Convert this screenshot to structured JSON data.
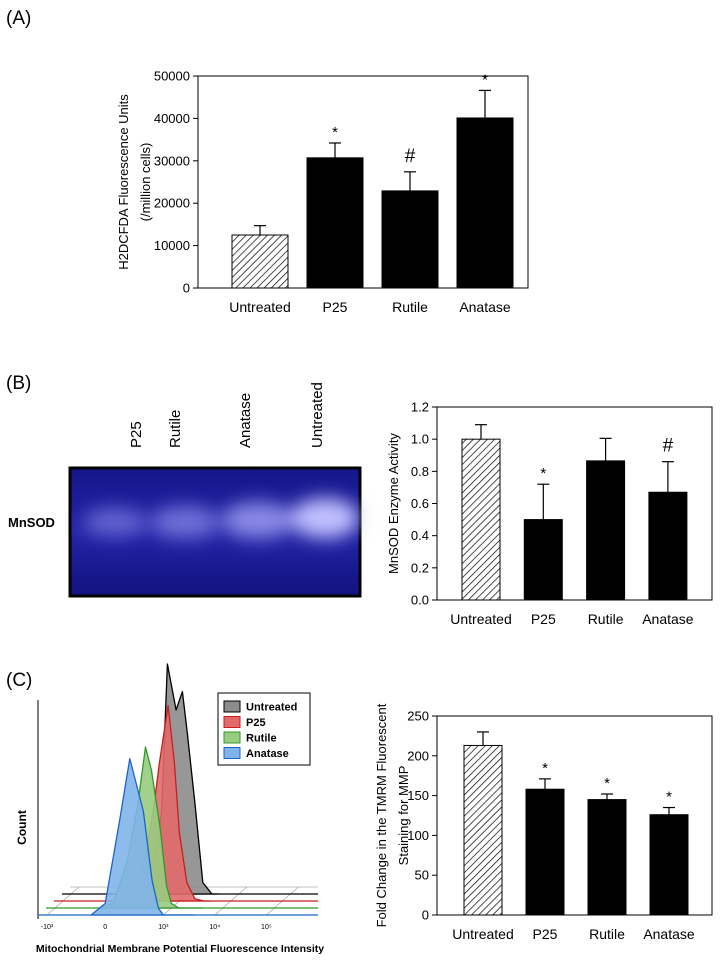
{
  "panels": [
    "(A)",
    "(B)",
    "(C)"
  ],
  "gel": {
    "lanes": [
      "P25",
      "Rutile",
      "Anatase",
      "Untreated"
    ],
    "row_label": "MnSOD"
  },
  "chart_data": [
    {
      "type": "bar",
      "categories": [
        "Untreated",
        "P25",
        "Rutile",
        "Anatase"
      ],
      "values": [
        12500,
        30700,
        22900,
        40100
      ],
      "errors": [
        2200,
        3500,
        4500,
        6500
      ],
      "annotations": [
        null,
        "*",
        "#",
        "*"
      ],
      "colors": [
        "#ffffff",
        "#000000",
        "#000000",
        "#000000"
      ],
      "hatched": [
        true,
        false,
        false,
        false
      ],
      "ylim": [
        0,
        50000
      ],
      "yticks": [
        0,
        10000,
        20000,
        30000,
        40000,
        50000
      ],
      "ylabel": [
        "H2DCFDA Fluorescence Units",
        "(/million cells)"
      ]
    },
    {
      "type": "bar",
      "categories": [
        "Untreated",
        "P25",
        "Rutile",
        "Anatase"
      ],
      "values": [
        1.0,
        0.5,
        0.865,
        0.67
      ],
      "errors": [
        0.09,
        0.22,
        0.14,
        0.19
      ],
      "annotations": [
        null,
        "*",
        null,
        "#"
      ],
      "colors": [
        "#ffffff",
        "#000000",
        "#000000",
        "#000000"
      ],
      "hatched": [
        true,
        false,
        false,
        false
      ],
      "ylim": [
        0,
        1.2
      ],
      "yticks": [
        {
          "value": 0,
          "label": "0.0"
        },
        0.2,
        0.4,
        0.6,
        0.8,
        {
          "value": 1,
          "label": "1.0"
        },
        1.2
      ],
      "ylabel": [
        "MnSOD Enzyme Activity"
      ]
    },
    {
      "type": "histogram-overlay",
      "xscale": "asinh",
      "x": [
        -100,
        0,
        100,
        200,
        300,
        400,
        600,
        800,
        1000,
        1400,
        2000,
        3000,
        4000
      ],
      "xlim": [
        -1500,
        1000000
      ],
      "xticks": [
        {
          "value": -1000,
          "label": "-10³"
        },
        0,
        {
          "value": 1000,
          "label": "10³"
        },
        {
          "value": 10000,
          "label": "10⁴"
        },
        {
          "value": 100000,
          "label": "10⁵"
        }
      ],
      "ylim": [
        0,
        100
      ],
      "xlabel": "Mitochondrial Membrane Potential Fluorescence Intensity",
      "ylabel": "Count",
      "legend": "upper right",
      "series": [
        {
          "name": "Untreated",
          "color": "#8c8c8c",
          "edge": "#000000",
          "values": [
            0,
            0,
            3,
            15,
            35,
            100,
            80,
            88,
            70,
            40,
            5,
            0,
            0
          ]
        },
        {
          "name": "P25",
          "color": "#e26a6a",
          "edge": "#c81e1e",
          "values": [
            0,
            0,
            5,
            20,
            40,
            60,
            85,
            60,
            30,
            8,
            1,
            0,
            0
          ]
        },
        {
          "name": "Rutile",
          "color": "#98cc80",
          "edge": "#2f9a2a",
          "values": [
            0,
            2,
            20,
            45,
            70,
            60,
            35,
            10,
            2,
            0,
            0,
            0,
            0
          ]
        },
        {
          "name": "Anatase",
          "color": "#80b4ea",
          "edge": "#1e64c8",
          "values": [
            0,
            5,
            40,
            68,
            55,
            45,
            15,
            3,
            0,
            0,
            0,
            0,
            0
          ]
        }
      ]
    },
    {
      "type": "bar",
      "categories": [
        "Untreated",
        "P25",
        "Rutile",
        "Anatase"
      ],
      "values": [
        213,
        158,
        145,
        126
      ],
      "errors": [
        17,
        13,
        7,
        9
      ],
      "annotations": [
        null,
        "*",
        "*",
        "*"
      ],
      "colors": [
        "#ffffff",
        "#000000",
        "#000000",
        "#000000"
      ],
      "hatched": [
        true,
        false,
        false,
        false
      ],
      "ylim": [
        0,
        250
      ],
      "yticks": [
        0,
        50,
        100,
        150,
        200,
        250
      ],
      "ylabel": [
        "Fold Change in the TMRM Fluorescent",
        "Staining for MMP"
      ]
    }
  ]
}
